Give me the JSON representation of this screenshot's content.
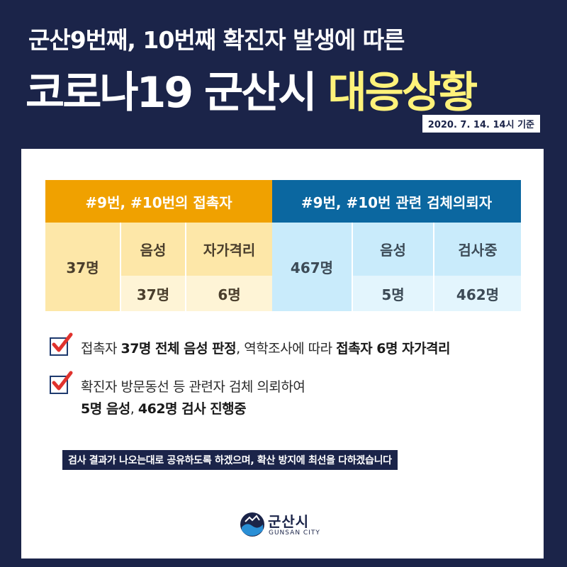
{
  "header": {
    "subtitle": "군산9번째, 10번째 확진자 발생에 따른",
    "title_white": "코로나19 군산시 ",
    "title_yellow": "대응상황",
    "date": "2020. 7. 14. 14시 기준"
  },
  "table": {
    "left": {
      "header": "#9번, #10번의 접촉자",
      "total": "37명",
      "col1_label": "음성",
      "col2_label": "자가격리",
      "col1_value": "37명",
      "col2_value": "6명"
    },
    "right": {
      "header": "#9번, #10번 관련 검체의뢰자",
      "total": "467명",
      "col1_label": "음성",
      "col2_label": "검사중",
      "col1_value": "5명",
      "col2_value": "462명"
    }
  },
  "bullets": [
    {
      "p1": "접촉자 ",
      "b1": "37명 전체 음성 판정",
      "p2": ", 역학조사에 따라 ",
      "b2": "접촉자 6명 자가격리"
    },
    {
      "line1": "확진자 방문동선 등 관련자 검체 의뢰하여",
      "b1": "5명 음성",
      "p1": ", ",
      "b2": "462명 검사 진행중"
    }
  ],
  "notice": "검사 결과가 나오는대로 공유하도록 하겠으며, 확산 방지에 최선을 다하겠습니다",
  "logo": {
    "name": "군산시",
    "sub": "GUNSAN CITY"
  },
  "colors": {
    "navy": "#1b2449",
    "yellow": "#fff27a",
    "orange": "#f0a100",
    "blue": "#0b67a0",
    "check_red": "#e0322d"
  }
}
